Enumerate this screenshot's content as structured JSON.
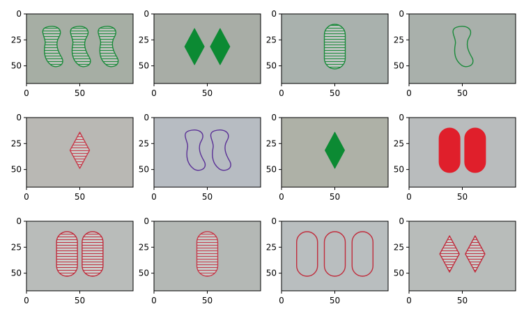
{
  "figure": {
    "layout": {
      "rows": 3,
      "cols": 4
    },
    "axis": {
      "xlim": [
        0,
        100
      ],
      "ylim": [
        67,
        0
      ],
      "x_ticks": [
        0,
        50
      ],
      "y_ticks": [
        0,
        25,
        50
      ]
    },
    "tiles": [
      {
        "card": "three-squiggle-green-striped",
        "count": 3,
        "shape": "squiggle",
        "color": "#1a8a3a",
        "fill": "striped",
        "background": "#a6aea4"
      },
      {
        "card": "two-diamond-green-solid",
        "count": 2,
        "shape": "diamond",
        "color": "#0c8a33",
        "fill": "solid",
        "background": "#a8ada6"
      },
      {
        "card": "one-oval-green-striped",
        "count": 1,
        "shape": "oval",
        "color": "#1a8a3a",
        "fill": "striped",
        "background": "#a9b1ad"
      },
      {
        "card": "one-squiggle-green-open",
        "count": 1,
        "shape": "squiggle",
        "color": "#1a8a3a",
        "fill": "open",
        "background": "#a9b0ab"
      },
      {
        "card": "one-diamond-red-striped",
        "count": 1,
        "shape": "diamond",
        "color": "#c63a4a",
        "fill": "striped",
        "background": "#b9b8b4"
      },
      {
        "card": "two-squiggle-purple-open",
        "count": 2,
        "shape": "squiggle",
        "color": "#5a3096",
        "fill": "open",
        "background": "#b7bcc2"
      },
      {
        "card": "one-diamond-green-solid",
        "count": 1,
        "shape": "diamond",
        "color": "#0c8a33",
        "fill": "solid",
        "background": "#aeb1a7"
      },
      {
        "card": "two-oval-red-solid",
        "count": 2,
        "shape": "oval",
        "color": "#e01f2b",
        "fill": "solid",
        "background": "#b9bcbd"
      },
      {
        "card": "two-oval-red-striped",
        "count": 2,
        "shape": "oval",
        "color": "#c02c3c",
        "fill": "striped",
        "background": "#b9bcba"
      },
      {
        "card": "one-oval-red-striped",
        "count": 1,
        "shape": "oval",
        "color": "#c63a4a",
        "fill": "striped",
        "background": "#b4b8b5"
      },
      {
        "card": "three-oval-red-open",
        "count": 3,
        "shape": "oval",
        "color": "#c02c3c",
        "fill": "open",
        "background": "#b9bebf"
      },
      {
        "card": "two-diamond-red-striped",
        "count": 2,
        "shape": "diamond",
        "color": "#c02c3c",
        "fill": "striped",
        "background": "#b8bcba"
      }
    ]
  }
}
